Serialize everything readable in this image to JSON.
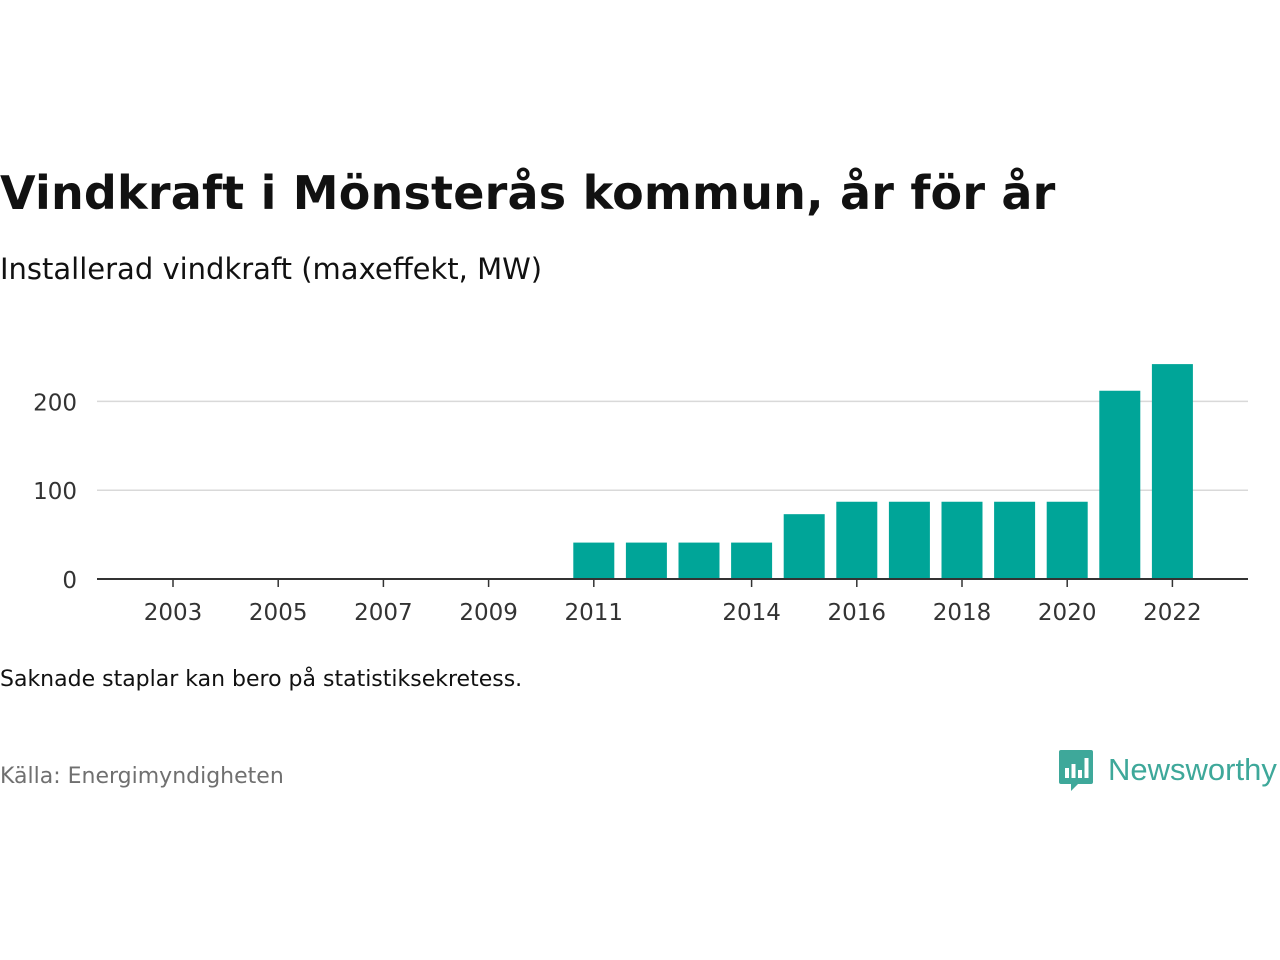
{
  "colors": {
    "bar": "#00a598",
    "grid": "#d9d9d9",
    "axis": "#333333",
    "brand": "#3ea89a"
  },
  "header": {
    "title": "Vindkraft i Mönsterås kommun, år för år",
    "subtitle": "Installerad vindkraft (maxeffekt, MW)"
  },
  "footer": {
    "note": "Saknade staplar kan bero på statistiksekretess.",
    "source": "Källa: Energimyndigheten"
  },
  "brand": {
    "name": "Newsworthy",
    "icon": "bar-chart-speech-bubble-icon"
  },
  "chart_data": {
    "type": "bar",
    "title": "Vindkraft i Mönsterås kommun, år för år",
    "subtitle": "Installerad vindkraft (maxeffekt, MW)",
    "xlabel": "",
    "ylabel": "",
    "categories": [
      2002,
      2003,
      2004,
      2005,
      2006,
      2007,
      2008,
      2009,
      2010,
      2011,
      2012,
      2013,
      2014,
      2015,
      2016,
      2017,
      2018,
      2019,
      2020,
      2021,
      2022
    ],
    "values": [
      0,
      0,
      0,
      0,
      0,
      0,
      0,
      0,
      0,
      41,
      41,
      41,
      41,
      73,
      87,
      87,
      87,
      87,
      87,
      212,
      242
    ],
    "x_tick_labels": [
      "2003",
      "2005",
      "2007",
      "2009",
      "2011",
      "2014",
      "2016",
      "2018",
      "2020",
      "2022"
    ],
    "y_ticks": [
      0,
      100,
      200
    ],
    "ylim": [
      0,
      250
    ],
    "grid": true,
    "legend": "none"
  }
}
